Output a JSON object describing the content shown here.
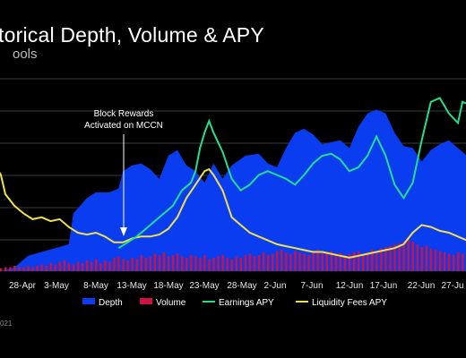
{
  "header": {
    "title": "torical Depth, Volume & APY",
    "subtitle": "ools"
  },
  "footer": {
    "text": "021"
  },
  "chart_data": {
    "type": "area",
    "x_ticks": [
      "28-Apr",
      "3-May",
      "8-May",
      "13-May",
      "18-May",
      "23-May",
      "28-May",
      "2-Jun",
      "7-Jun",
      "12-Jun",
      "17-Jun",
      "22-Jun",
      "27-Ju"
    ],
    "annotation": {
      "lines": [
        "Block Rewards",
        "Activated on MCCN"
      ],
      "at_day": 25
    },
    "colors": {
      "depth": "#0a3cf0",
      "volume": "#d01040",
      "earnings": "#22e08a",
      "fees": "#f0e04a",
      "grid": "#3a3a3a"
    },
    "y_range": [
      0,
      100
    ],
    "series": [
      {
        "name": "Depth",
        "type": "area",
        "values": [
          [
            -4,
            10
          ],
          [
            -1,
            12
          ],
          [
            2,
            14
          ],
          [
            5,
            14
          ],
          [
            8,
            14
          ],
          [
            12,
            16
          ],
          [
            15,
            15
          ],
          [
            18,
            16
          ],
          [
            21,
            17
          ],
          [
            24,
            18
          ],
          [
            27,
            19
          ],
          [
            30,
            20
          ],
          [
            33,
            21
          ],
          [
            36,
            22
          ],
          [
            39,
            23
          ],
          [
            15,
            15
          ],
          [
            16,
            34
          ],
          [
            19,
            40
          ],
          [
            21,
            42
          ],
          [
            23,
            42
          ],
          [
            25,
            50
          ],
          [
            28,
            55
          ],
          [
            31,
            56
          ],
          [
            34,
            54
          ],
          [
            36,
            47
          ],
          [
            37,
            60
          ],
          [
            40,
            62
          ],
          [
            42,
            52
          ],
          [
            44,
            50
          ],
          [
            46,
            45
          ],
          [
            48,
            55
          ],
          [
            50,
            48
          ],
          [
            52,
            54
          ],
          [
            55,
            60
          ],
          [
            58,
            62
          ],
          [
            60,
            56
          ],
          [
            62,
            54
          ],
          [
            64,
            64
          ],
          [
            66,
            70
          ],
          [
            68,
            72
          ],
          [
            70,
            70
          ],
          [
            72,
            64
          ],
          [
            74,
            67
          ],
          [
            76,
            68
          ],
          [
            78,
            64
          ],
          [
            80,
            74
          ],
          [
            82,
            80
          ],
          [
            84,
            82
          ],
          [
            86,
            80
          ],
          [
            88,
            70
          ],
          [
            90,
            63
          ],
          [
            92,
            62
          ],
          [
            94,
            58
          ],
          [
            96,
            62
          ]
        ]
      },
      {
        "name": "Volume",
        "type": "bar"
      },
      {
        "name": "Earnings APY",
        "type": "line"
      },
      {
        "name": "Liquidity Fees APY",
        "type": "line"
      }
    ]
  },
  "legend": [
    "Depth",
    "Volume",
    "Earnings APY",
    "Liquidity Fees APY"
  ]
}
